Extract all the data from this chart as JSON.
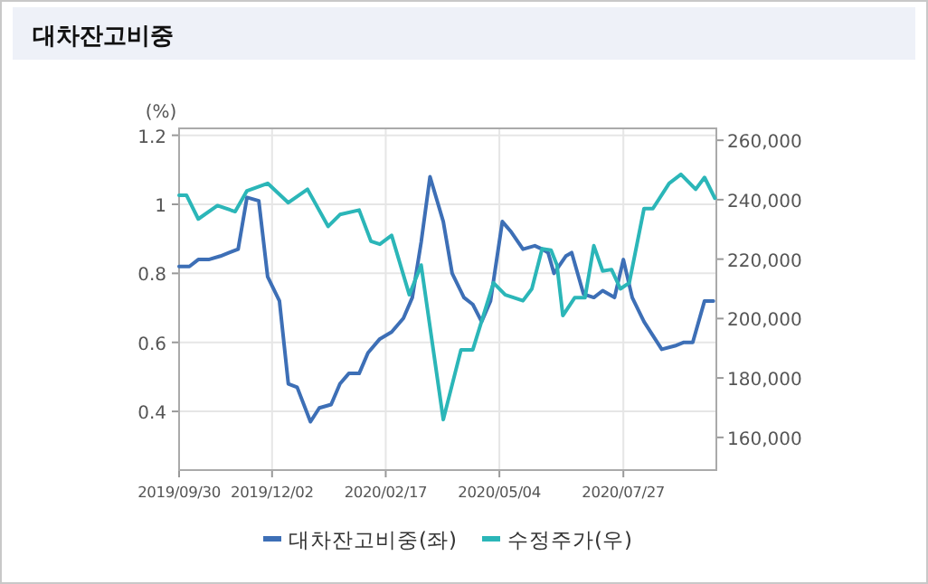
{
  "chart_data": {
    "type": "line",
    "title": "대차잔고비중",
    "ylabel": "(%)",
    "grid": true,
    "legend": "bottom",
    "marker": "none",
    "line_style": "solid",
    "xlim": [
      "2019-09-30",
      "2020-09-28"
    ],
    "xticks": [
      {
        "value": "2019-09-30",
        "label": "2019/09/30"
      },
      {
        "value": "2019-12-02",
        "label": "2019/12/02"
      },
      {
        "value": "2020-02-17",
        "label": "2020/02/17"
      },
      {
        "value": "2020-05-04",
        "label": "2020/05/04"
      },
      {
        "value": "2020-07-27",
        "label": "2020/07/27"
      }
    ],
    "ylim": [
      0.23,
      1.22
    ],
    "yticks": [
      0.4,
      0.6,
      0.8,
      1,
      1.2
    ],
    "y2lim": [
      149000,
      264000
    ],
    "y2ticks": [
      {
        "value": 160000,
        "label": "160,000"
      },
      {
        "value": 180000,
        "label": "180,000"
      },
      {
        "value": 200000,
        "label": "200,000"
      },
      {
        "value": 220000,
        "label": "220,000"
      },
      {
        "value": 240000,
        "label": "240,000"
      },
      {
        "value": 260000,
        "label": "260,000"
      }
    ],
    "series": [
      {
        "name": "대차잔고비중(좌)",
        "color": "#3d6fb6",
        "x": [
          "2019-09-30",
          "2019-10-07",
          "2019-10-13",
          "2019-10-20",
          "2019-10-28",
          "2019-11-03",
          "2019-11-09",
          "2019-11-15",
          "2019-11-23",
          "2019-11-29",
          "2019-12-07",
          "2019-12-13",
          "2019-12-19",
          "2019-12-28",
          "2020-01-03",
          "2020-01-11",
          "2020-01-17",
          "2020-01-23",
          "2020-01-30",
          "2020-02-05",
          "2020-02-13",
          "2020-02-21",
          "2020-02-29",
          "2020-03-06",
          "2020-03-12",
          "2020-03-18",
          "2020-03-27",
          "2020-04-02",
          "2020-04-10",
          "2020-04-16",
          "2020-04-22",
          "2020-04-28",
          "2020-05-06",
          "2020-05-12",
          "2020-05-20",
          "2020-05-28",
          "2020-06-02",
          "2020-06-06",
          "2020-06-10",
          "2020-06-18",
          "2020-06-22",
          "2020-06-30",
          "2020-07-07",
          "2020-07-13",
          "2020-07-21",
          "2020-07-27",
          "2020-08-02",
          "2020-08-10",
          "2020-08-16",
          "2020-08-22",
          "2020-08-31",
          "2020-09-06",
          "2020-09-12",
          "2020-09-20",
          "2020-09-26"
        ],
        "values": [
          0.82,
          0.82,
          0.84,
          0.84,
          0.85,
          0.86,
          0.87,
          1.02,
          1.01,
          0.79,
          0.72,
          0.48,
          0.47,
          0.37,
          0.41,
          0.42,
          0.48,
          0.51,
          0.51,
          0.57,
          0.61,
          0.63,
          0.67,
          0.73,
          0.89,
          1.08,
          0.95,
          0.8,
          0.73,
          0.71,
          0.66,
          0.72,
          0.95,
          0.92,
          0.87,
          0.88,
          0.87,
          0.86,
          0.8,
          0.85,
          0.86,
          0.74,
          0.73,
          0.75,
          0.73,
          0.84,
          0.73,
          0.66,
          0.62,
          0.58,
          0.59,
          0.6,
          0.6,
          0.72,
          0.72
        ]
      },
      {
        "name": "수정주가(우)",
        "color": "#2bb6b8",
        "axis": "y2",
        "x": [
          "2019-09-30",
          "2019-10-05",
          "2019-10-13",
          "2019-10-26",
          "2019-11-07",
          "2019-11-15",
          "2019-11-29",
          "2019-12-13",
          "2019-12-26",
          "2020-01-09",
          "2020-01-17",
          "2020-01-30",
          "2020-02-07",
          "2020-02-13",
          "2020-02-21",
          "2020-03-04",
          "2020-03-12",
          "2020-03-27",
          "2020-04-08",
          "2020-04-16",
          "2020-04-30",
          "2020-05-08",
          "2020-05-20",
          "2020-05-26",
          "2020-06-02",
          "2020-06-08",
          "2020-06-12",
          "2020-06-16",
          "2020-06-24",
          "2020-07-01",
          "2020-07-07",
          "2020-07-13",
          "2020-07-19",
          "2020-07-25",
          "2020-07-31",
          "2020-08-10",
          "2020-08-16",
          "2020-08-27",
          "2020-09-04",
          "2020-09-14",
          "2020-09-20",
          "2020-09-27"
        ],
        "values": [
          241500,
          241500,
          233500,
          238000,
          236000,
          243000,
          245500,
          239000,
          243500,
          231000,
          235000,
          236500,
          226000,
          225000,
          228000,
          208000,
          218000,
          166000,
          189500,
          189500,
          212000,
          208000,
          206000,
          210000,
          223500,
          223000,
          218000,
          201000,
          207000,
          207000,
          224500,
          216000,
          216500,
          210000,
          212000,
          237000,
          237000,
          245500,
          248500,
          243500,
          247500,
          240500
        ]
      }
    ]
  }
}
